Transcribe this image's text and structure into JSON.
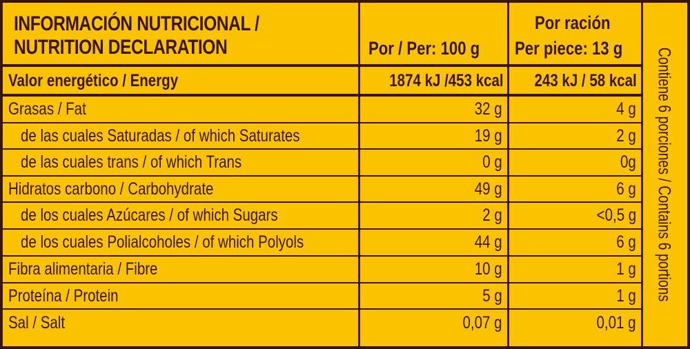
{
  "header": {
    "title_line1": "INFORMACIÓN NUTRICIONAL /",
    "title_line2": "NUTRITION  DECLARATION",
    "col_per100": "Por / Per: 100 g",
    "col_portion_line1": "Por ración",
    "col_portion_line2": "Per piece: 13 g"
  },
  "rows": [
    {
      "label": "Valor energético / Energy",
      "per100": "1874 kJ /453 kcal",
      "portion": "243 kJ / 58 kcal"
    },
    {
      "label": "Grasas / Fat",
      "per100": "32 g",
      "portion": "4 g"
    },
    {
      "label": "de las cuales Saturadas / of which Saturates",
      "per100": "19 g",
      "portion": "2 g"
    },
    {
      "label": "de las cuales trans / of which Trans",
      "per100": "0 g",
      "portion": "0g"
    },
    {
      "label": "Hidratos carbono / Carbohydrate",
      "per100": "49 g",
      "portion": "6 g"
    },
    {
      "label": "de los cuales Azúcares / of which Sugars",
      "per100": "2 g",
      "portion": "<0,5 g"
    },
    {
      "label": "de los cuales Polialcoholes / of which Polyols",
      "per100": "44 g",
      "portion": "6 g"
    },
    {
      "label": "Fibra alimentaria / Fibre",
      "per100": "10 g",
      "portion": "1 g"
    },
    {
      "label": "Proteína / Protein",
      "per100": "5 g",
      "portion": "1 g"
    },
    {
      "label": "Sal / Salt",
      "per100": "0,07 g",
      "portion": "0,01 g"
    }
  ],
  "side_note": "Contiene 6 porciones / Contains 6 portions",
  "colors": {
    "background": "#fbc200",
    "ink": "#3a1608"
  }
}
